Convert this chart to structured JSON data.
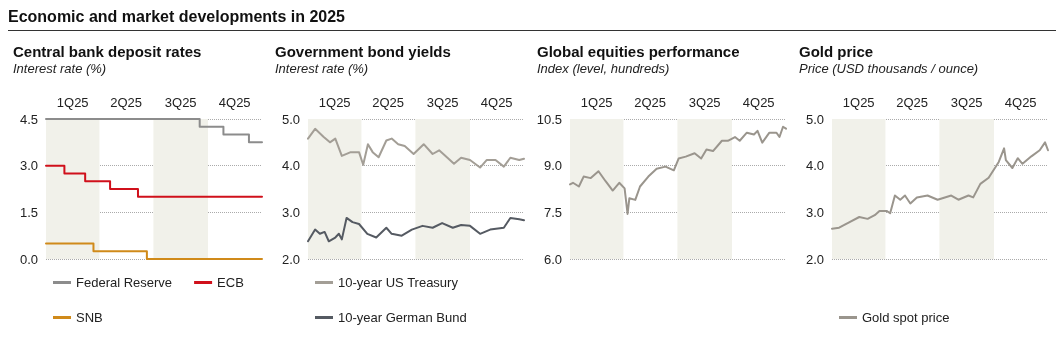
{
  "chart_data": [
    {
      "type": "step",
      "title": "Central bank deposit rates",
      "subtitle": "Interest rate (%)",
      "annotations": [
        "Economic and market developments in 2025"
      ],
      "xlim": [
        "2025-01-01",
        "2025-12-31"
      ],
      "xticks": [
        {
          "value": "2025-02-15",
          "label": "1Q25"
        },
        {
          "value": "2025-05-16",
          "label": "2Q25"
        },
        {
          "value": "2025-08-16",
          "label": "3Q25"
        },
        {
          "value": "2025-11-15",
          "label": "4Q25"
        }
      ],
      "ylim": [
        0,
        4.5
      ],
      "yticks": [
        {
          "value": 0,
          "label": "0.0"
        },
        1.5,
        {
          "value": 3,
          "label": "3.0"
        },
        4.5
      ],
      "grid": "y",
      "legend": "bottom",
      "bands": [
        {
          "axis": "x",
          "from": "2025-01-01",
          "to": "2025-04-01",
          "color": "#f1f1ea"
        },
        {
          "axis": "x",
          "from": "2025-07-01",
          "to": "2025-10-01",
          "color": "#f1f1ea"
        }
      ],
      "series": [
        {
          "name": "Federal Reserve",
          "color": "#8c8c8c",
          "x": [
            "2025-01-01",
            "2025-09-17",
            "2025-10-27",
            "2025-12-09",
            "2025-12-31"
          ],
          "values": [
            4.5,
            4.25,
            4.0,
            3.75,
            3.75
          ]
        },
        {
          "name": "ECB",
          "color": "#d0101b",
          "x": [
            "2025-01-01",
            "2025-02-01",
            "2025-03-08",
            "2025-04-19",
            "2025-06-05",
            "2025-12-31"
          ],
          "values": [
            3.0,
            2.75,
            2.5,
            2.25,
            2.0,
            2.0
          ]
        },
        {
          "name": "SNB",
          "color": "#d08a1a",
          "x": [
            "2025-01-01",
            "2025-03-22",
            "2025-06-20",
            "2025-12-31"
          ],
          "values": [
            0.5,
            0.25,
            0,
            0
          ]
        }
      ]
    },
    {
      "type": "line",
      "title": "Government bond yields",
      "subtitle": "Interest rate (%)",
      "xlim": [
        "2025-01-01",
        "2025-12-31"
      ],
      "xticks": [
        {
          "value": "2025-02-15",
          "label": "1Q25"
        },
        {
          "value": "2025-05-16",
          "label": "2Q25"
        },
        {
          "value": "2025-08-16",
          "label": "3Q25"
        },
        {
          "value": "2025-11-15",
          "label": "4Q25"
        }
      ],
      "ylim": [
        2,
        5
      ],
      "yticks": [
        {
          "value": 2,
          "label": "2.0"
        },
        {
          "value": 3,
          "label": "3.0"
        },
        {
          "value": 4,
          "label": "4.0"
        },
        {
          "value": 5,
          "label": "5.0"
        }
      ],
      "grid": "y",
      "legend": "bottom",
      "bands": [
        {
          "axis": "x",
          "from": "2025-01-01",
          "to": "2025-04-01",
          "color": "#f1f1ea"
        },
        {
          "axis": "x",
          "from": "2025-07-01",
          "to": "2025-10-01",
          "color": "#f1f1ea"
        }
      ],
      "series": [
        {
          "name": "10-year US Treasury",
          "color": "#a39e96",
          "x": [
            "2025-01-01",
            "2025-01-13",
            "2025-01-27",
            "2025-02-07",
            "2025-02-16",
            "2025-02-27",
            "2025-03-14",
            "2025-03-28",
            "2025-04-04",
            "2025-04-12",
            "2025-04-20",
            "2025-04-30",
            "2025-05-13",
            "2025-05-22",
            "2025-06-02",
            "2025-06-13",
            "2025-06-28",
            "2025-07-15",
            "2025-07-30",
            "2025-08-10",
            "2025-08-24",
            "2025-09-04",
            "2025-09-16",
            "2025-10-01",
            "2025-10-18",
            "2025-10-29",
            "2025-11-13",
            "2025-11-27",
            "2025-12-08",
            "2025-12-23",
            "2025-12-31"
          ],
          "values": [
            4.58,
            4.79,
            4.62,
            4.5,
            4.58,
            4.21,
            4.29,
            4.29,
            4.02,
            4.46,
            4.29,
            4.18,
            4.54,
            4.58,
            4.46,
            4.42,
            4.25,
            4.46,
            4.25,
            4.33,
            4.17,
            4.04,
            4.17,
            4.12,
            3.96,
            4.12,
            4.12,
            3.98,
            4.17,
            4.12,
            4.15
          ]
        },
        {
          "name": "10-year German Bund",
          "color": "#555a62",
          "x": [
            "2025-01-01",
            "2025-01-13",
            "2025-01-21",
            "2025-01-29",
            "2025-02-05",
            "2025-02-16",
            "2025-02-22",
            "2025-02-27",
            "2025-03-07",
            "2025-03-17",
            "2025-03-28",
            "2025-04-11",
            "2025-04-26",
            "2025-05-13",
            "2025-05-22",
            "2025-06-08",
            "2025-06-25",
            "2025-07-13",
            "2025-07-30",
            "2025-08-15",
            "2025-09-02",
            "2025-09-16",
            "2025-10-01",
            "2025-10-18",
            "2025-11-04",
            "2025-11-27",
            "2025-12-08",
            "2025-12-23",
            "2025-12-31"
          ],
          "values": [
            2.38,
            2.63,
            2.54,
            2.58,
            2.38,
            2.46,
            2.54,
            2.42,
            2.88,
            2.79,
            2.75,
            2.54,
            2.46,
            2.67,
            2.54,
            2.5,
            2.63,
            2.71,
            2.67,
            2.77,
            2.67,
            2.73,
            2.71,
            2.54,
            2.63,
            2.67,
            2.88,
            2.85,
            2.83
          ]
        }
      ]
    },
    {
      "type": "line",
      "title": "Global equities performance",
      "subtitle": "Index (level, hundreds)",
      "xlim": [
        "2025-01-01",
        "2025-12-31"
      ],
      "xticks": [
        {
          "value": "2025-02-15",
          "label": "1Q25"
        },
        {
          "value": "2025-05-16",
          "label": "2Q25"
        },
        {
          "value": "2025-08-16",
          "label": "3Q25"
        },
        {
          "value": "2025-11-15",
          "label": "4Q25"
        }
      ],
      "ylim": [
        6,
        10.5
      ],
      "yticks": [
        {
          "value": 6,
          "label": "6.0"
        },
        7.5,
        {
          "value": 9,
          "label": "9.0"
        },
        10.5
      ],
      "grid": "y",
      "bands": [
        {
          "axis": "x",
          "from": "2025-01-01",
          "to": "2025-04-01",
          "color": "#f1f1ea"
        },
        {
          "axis": "x",
          "from": "2025-07-01",
          "to": "2025-10-01",
          "color": "#f1f1ea"
        }
      ],
      "series": [
        {
          "color": "#9a958d",
          "x": [
            "2025-01-01",
            "2025-01-06",
            "2025-01-16",
            "2025-01-24",
            "2025-02-05",
            "2025-02-18",
            "2025-03-02",
            "2025-03-14",
            "2025-03-25",
            "2025-04-03",
            "2025-04-08",
            "2025-04-11",
            "2025-04-21",
            "2025-04-29",
            "2025-05-13",
            "2025-05-27",
            "2025-06-11",
            "2025-06-25",
            "2025-07-03",
            "2025-07-15",
            "2025-07-30",
            "2025-08-10",
            "2025-08-19",
            "2025-08-30",
            "2025-09-14",
            "2025-09-24",
            "2025-10-06",
            "2025-10-14",
            "2025-10-26",
            "2025-11-07",
            "2025-11-13",
            "2025-11-21",
            "2025-12-03",
            "2025-12-15",
            "2025-12-20",
            "2025-12-26",
            "2025-12-31"
          ],
          "values": [
            8.4,
            8.45,
            8.33,
            8.65,
            8.6,
            8.82,
            8.5,
            8.2,
            8.45,
            8.27,
            7.45,
            7.95,
            7.9,
            8.33,
            8.65,
            8.9,
            8.97,
            8.85,
            9.23,
            9.29,
            9.4,
            9.23,
            9.52,
            9.47,
            9.8,
            9.8,
            9.92,
            9.8,
            10.06,
            10.0,
            10.12,
            9.74,
            10.06,
            10.06,
            9.92,
            10.25,
            10.19
          ]
        }
      ]
    },
    {
      "type": "line",
      "title": "Gold price",
      "subtitle": "Price (USD thousands / ounce)",
      "xlim": [
        "2025-01-01",
        "2025-12-31"
      ],
      "xticks": [
        {
          "value": "2025-02-15",
          "label": "1Q25"
        },
        {
          "value": "2025-05-16",
          "label": "2Q25"
        },
        {
          "value": "2025-08-16",
          "label": "3Q25"
        },
        {
          "value": "2025-11-15",
          "label": "4Q25"
        }
      ],
      "ylim": [
        2,
        5
      ],
      "yticks": [
        {
          "value": 2,
          "label": "2.0"
        },
        {
          "value": 3,
          "label": "3.0"
        },
        {
          "value": 4,
          "label": "4.0"
        },
        {
          "value": 5,
          "label": "5.0"
        }
      ],
      "grid": "y",
      "legend": "bottom",
      "bands": [
        {
          "axis": "x",
          "from": "2025-01-01",
          "to": "2025-04-01",
          "color": "#f1f1ea"
        },
        {
          "axis": "x",
          "from": "2025-07-01",
          "to": "2025-10-01",
          "color": "#f1f1ea"
        }
      ],
      "series": [
        {
          "name": "Gold spot price",
          "color": "#9a958d",
          "x": [
            "2025-01-01",
            "2025-01-13",
            "2025-01-29",
            "2025-02-16",
            "2025-03-02",
            "2025-03-14",
            "2025-03-22",
            "2025-04-03",
            "2025-04-09",
            "2025-04-17",
            "2025-04-26",
            "2025-05-04",
            "2025-05-13",
            "2025-05-24",
            "2025-06-11",
            "2025-06-28",
            "2025-07-21",
            "2025-08-02",
            "2025-08-19",
            "2025-08-27",
            "2025-09-08",
            "2025-09-22",
            "2025-10-09",
            "2025-10-18",
            "2025-10-21",
            "2025-11-01",
            "2025-11-10",
            "2025-11-18",
            "2025-12-03",
            "2025-12-17",
            "2025-12-26",
            "2025-12-31"
          ],
          "values": [
            2.65,
            2.67,
            2.78,
            2.9,
            2.86,
            2.94,
            3.03,
            3.03,
            2.98,
            3.36,
            3.27,
            3.36,
            3.19,
            3.32,
            3.36,
            3.27,
            3.36,
            3.27,
            3.36,
            3.32,
            3.61,
            3.74,
            4.08,
            4.37,
            4.12,
            3.95,
            4.16,
            4.04,
            4.2,
            4.33,
            4.5,
            4.33
          ]
        }
      ]
    }
  ]
}
